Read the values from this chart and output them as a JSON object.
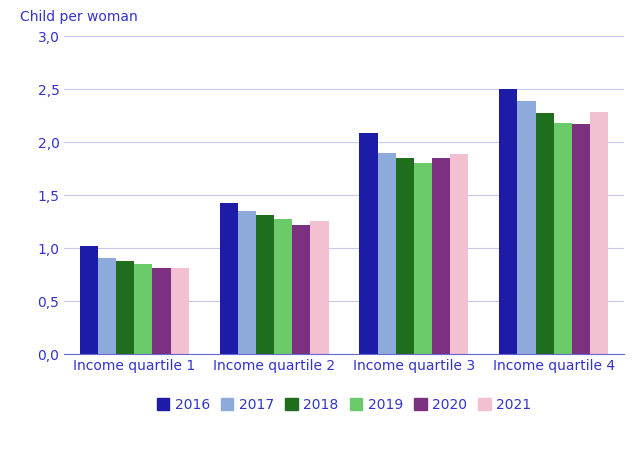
{
  "categories": [
    "Income quartile 1",
    "Income quartile 2",
    "Income quartile 3",
    "Income quartile 4"
  ],
  "years": [
    "2016",
    "2017",
    "2018",
    "2019",
    "2020",
    "2021"
  ],
  "values": {
    "Income quartile 1": [
      1.02,
      0.91,
      0.88,
      0.85,
      0.81,
      0.81
    ],
    "Income quartile 2": [
      1.43,
      1.35,
      1.31,
      1.28,
      1.22,
      1.26
    ],
    "Income quartile 3": [
      2.09,
      1.9,
      1.85,
      1.8,
      1.85,
      1.89
    ],
    "Income quartile 4": [
      2.5,
      2.39,
      2.28,
      2.18,
      2.17,
      2.29
    ]
  },
  "colors": [
    "#1c1ca8",
    "#8eaadb",
    "#1e6e1e",
    "#6bcb6b",
    "#7b3080",
    "#f2c0d0"
  ],
  "ylabel": "Child per woman",
  "ylim": [
    0,
    3.0
  ],
  "yticks": [
    0.0,
    0.5,
    1.0,
    1.5,
    2.0,
    2.5,
    3.0
  ],
  "ytick_labels": [
    "0,0",
    "0,5",
    "1,0",
    "1,5",
    "2,0",
    "2,5",
    "3,0"
  ],
  "grid_color": "#c8c8e8",
  "axis_color": "#6666cc",
  "text_color": "#3333cc",
  "background_color": "#ffffff",
  "bar_width": 0.13,
  "legend_fontsize": 10,
  "tick_fontsize": 10,
  "ylabel_fontsize": 10
}
